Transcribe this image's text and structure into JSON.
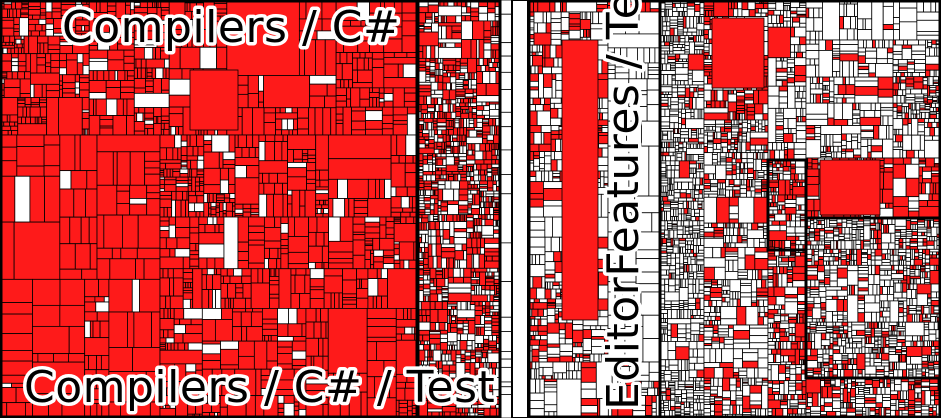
{
  "treemap": {
    "colors": {
      "covered": "#fe1a1a",
      "uncovered": "#ffffff",
      "border": "#000000"
    },
    "regions": [
      {
        "name": "Compilers / C#",
        "covered_fraction": 0.9
      },
      {
        "name": "Compilers / C# / Test",
        "covered_fraction": 0.9
      },
      {
        "name": "EditorFeatures / Test",
        "covered_fraction": 0.22
      }
    ]
  }
}
